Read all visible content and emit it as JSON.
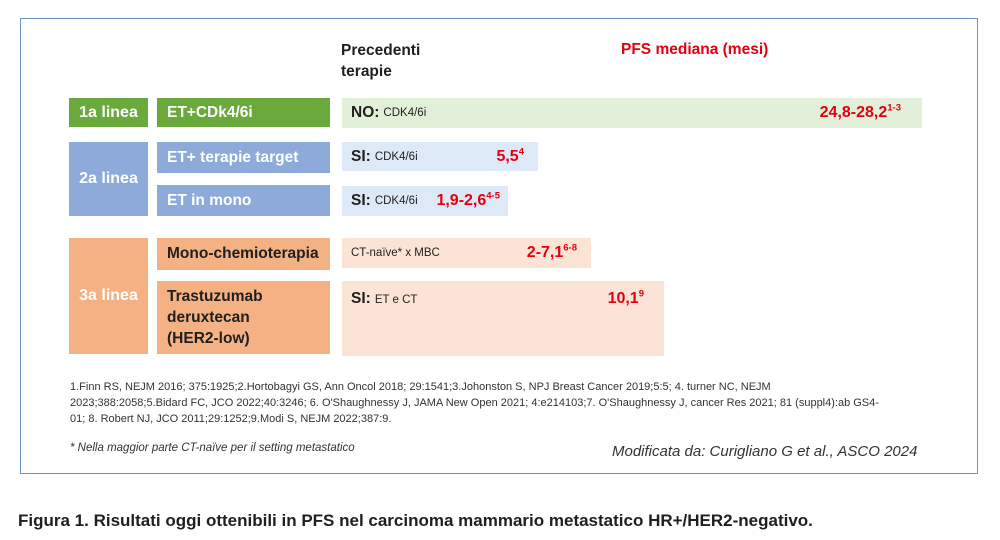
{
  "headers": {
    "previous_therapies": "Precedenti\nterapie",
    "pfs": "PFS mediana (mesi)"
  },
  "lines": [
    {
      "label": "1a linea",
      "color": "#6aaa3c"
    },
    {
      "label": "2a linea",
      "color": "#8eaadb"
    },
    {
      "label": "3a linea",
      "color": "#f4b183"
    }
  ],
  "rows": [
    {
      "therapy": "ET+CDk4/6i",
      "prev_strong": "NO:",
      "prev_small": "CDK4/6i",
      "pfs": "24,8-28,2",
      "refs": "1-3"
    },
    {
      "therapy": "ET+ terapie target",
      "prev_strong": "SI:",
      "prev_small": "CDK4/6i",
      "pfs": "5,5",
      "refs": "4"
    },
    {
      "therapy": "ET in mono",
      "prev_strong": "SI:",
      "prev_small": "CDK4/6i",
      "pfs": "1,9-2,6",
      "refs": "4-5"
    },
    {
      "therapy": "Mono-chemioterapia",
      "prev_strong": "",
      "prev_small": "CT-naïve* x MBC",
      "pfs": "2-7,1",
      "refs": "6-8"
    },
    {
      "therapy": "Trastuzumab\nderuxtecan\n(HER2-low)",
      "prev_strong": "SI:",
      "prev_small": "ET e CT",
      "pfs": "10,1",
      "refs": "9"
    }
  ],
  "references": "1.Finn RS, NEJM 2016; 375:1925;2.Hortobagyi GS, Ann Oncol 2018; 29:1541;3.Johonston S, NPJ Breast Cancer 2019;5:5; 4. turner NC, NEJM 2023;388:2058;5.Bidard FC, JCO 2022;40:3246; 6. O'Shaughnessy J, JAMA New Open 2021; 4:e214103;7. O'Shaughnessy J, cancer Res 2021; 81 (suppl4):ab GS4-01; 8. Robert NJ, JCO 2011;29:1252;9.Modi S, NEJM 2022;387:9.",
  "footnote": "* Nella maggior parte CT-naïve per il setting metastatico",
  "credit": "Modificata da: Curigliano G et al., ASCO 2024",
  "caption": "Figura 1. Risultati oggi ottenibili in PFS nel carcinoma mammario metastatico HR+/HER2-negativo."
}
